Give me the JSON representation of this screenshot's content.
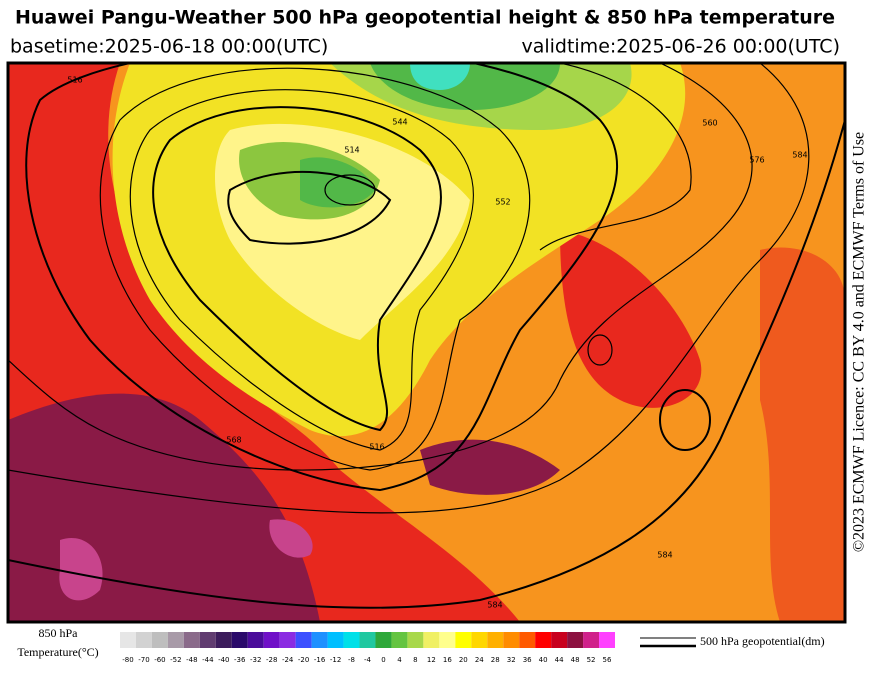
{
  "header": {
    "title": "Huawei Pangu-Weather 500 hPa geopotential height & 850 hPa temperature",
    "basetime": "basetime:2025-06-18 00:00(UTC)",
    "validtime": "validtime:2025-06-26 00:00(UTC)"
  },
  "map": {
    "contour_labels": [
      "516",
      "514",
      "544",
      "552",
      "560",
      "576",
      "584",
      "568",
      "516",
      "584",
      "584"
    ]
  },
  "credit": "©2023 ECMWF Licence: CC BY 4.0 and ECMWF Terms of Use",
  "legend": {
    "title_line1": "850 hPa",
    "title_line2": "Temperature(°C)",
    "ticks": [
      "-80",
      "-70",
      "-60",
      "-52",
      "-48",
      "-44",
      "-40",
      "-36",
      "-32",
      "-28",
      "-24",
      "-20",
      "-16",
      "-12",
      "-8",
      "-4",
      "0",
      "4",
      "8",
      "12",
      "16",
      "20",
      "24",
      "28",
      "32",
      "36",
      "40",
      "44",
      "48",
      "52",
      "56"
    ],
    "colors": [
      "#e6e6e6",
      "#d2d2d2",
      "#bebebe",
      "#a89aa8",
      "#8a6a8a",
      "#603c70",
      "#3c1c5c",
      "#2a0a6a",
      "#4a0c9a",
      "#7010c8",
      "#8a2be2",
      "#3c50ff",
      "#1e90ff",
      "#00bfff",
      "#00e0e8",
      "#20c8a0",
      "#2ea83a",
      "#64c440",
      "#a8d84a",
      "#f0f064",
      "#ffff8c",
      "#ffff00",
      "#ffd700",
      "#ffb000",
      "#ff8c00",
      "#ff5a00",
      "#ff0000",
      "#c8001e",
      "#8c1040",
      "#d0208a",
      "#ff40ff"
    ],
    "contour_label": "500 hPa geopotential(dm)"
  }
}
